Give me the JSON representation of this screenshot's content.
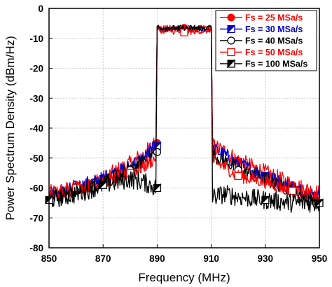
{
  "chart_data": {
    "type": "line",
    "xlabel": "Frequency (MHz)",
    "ylabel": "Power Spectrum Density (dBm/Hz)",
    "xlim": [
      850,
      950
    ],
    "ylim": [
      -80,
      0
    ],
    "xticks": [
      "850",
      "870",
      "890",
      "910",
      "930",
      "950"
    ],
    "yticks": [
      "0",
      "-10",
      "-20",
      "-30",
      "-40",
      "-50",
      "-60",
      "-70",
      "-80"
    ],
    "grid": true,
    "legend_position": "top-right",
    "series": [
      {
        "name": "Fs = 25 MSa/s",
        "color": "#ff0000",
        "marker": "filled-circle",
        "x": [
          850,
          860,
          870,
          880,
          885,
          889.5,
          890,
          891,
          900,
          909,
          910,
          910.5,
          915,
          920,
          930,
          940,
          950
        ],
        "y": [
          -62,
          -60,
          -57,
          -52,
          -49,
          -45,
          -6,
          -6.5,
          -6.5,
          -6.5,
          -6,
          -46,
          -48,
          -51,
          -55,
          -59,
          -62
        ],
        "marker_x": [
          860,
          890,
          900,
          920,
          940
        ],
        "marker_y": [
          -60,
          -45,
          -6.5,
          -51,
          -59
        ]
      },
      {
        "name": "Fs = 30 MSa/s",
        "color": "#0000cc",
        "marker": "half-filled-triangle",
        "x": [
          850,
          860,
          870,
          880,
          885,
          889.5,
          890,
          891,
          900,
          909,
          910,
          910.5,
          915,
          920,
          930,
          940,
          950
        ],
        "y": [
          -63,
          -60,
          -57,
          -53,
          -50,
          -46,
          -6.5,
          -7,
          -7,
          -7,
          -6.5,
          -47,
          -49,
          -52,
          -56,
          -60,
          -63
        ],
        "marker_x": [
          870,
          890,
          930
        ],
        "marker_y": [
          -57,
          -46,
          -56
        ]
      },
      {
        "name": "Fs = 40 MSa/s",
        "color": "#000000",
        "marker": "open-circle",
        "x": [
          850,
          860,
          870,
          880,
          885,
          889.5,
          890,
          891,
          900,
          909,
          910,
          910.5,
          915,
          920,
          930,
          940,
          950
        ],
        "y": [
          -63,
          -61,
          -58,
          -54,
          -51,
          -48,
          -6.5,
          -7,
          -7,
          -7,
          -6.5,
          -49,
          -51,
          -54,
          -57,
          -61,
          -64
        ],
        "marker_x": [
          880,
          890,
          920,
          940
        ],
        "marker_y": [
          -54,
          -48,
          -54,
          -61
        ]
      },
      {
        "name": "Fs = 50 MSa/s",
        "color": "#ff0000",
        "marker": "open-square",
        "x": [
          850,
          860,
          870,
          880,
          885,
          889.5,
          890,
          891,
          900,
          909,
          910,
          910.5,
          915,
          920,
          930,
          940,
          950
        ],
        "y": [
          -63,
          -60,
          -58,
          -55,
          -53,
          -50,
          -7,
          -7.5,
          -8,
          -7.5,
          -7,
          -51,
          -53,
          -56,
          -58,
          -61,
          -63
        ],
        "marker_x": [
          860,
          880,
          900,
          920,
          940
        ],
        "marker_y": [
          -60,
          -55,
          -8,
          -56,
          -61
        ]
      },
      {
        "name": "Fs = 100 MSa/s",
        "color": "#000000",
        "marker": "half-filled-triangle",
        "x": [
          850,
          860,
          870,
          880,
          885,
          889.5,
          890,
          891,
          900,
          909,
          910,
          910.5,
          915,
          920,
          930,
          940,
          950
        ],
        "y": [
          -64,
          -62,
          -59,
          -57,
          -58,
          -60,
          -6,
          -6.5,
          -6.5,
          -6.5,
          -6,
          -63,
          -62,
          -63,
          -64,
          -65,
          -65
        ],
        "marker_x": [
          850,
          870,
          890,
          930,
          950
        ],
        "marker_y": [
          -64,
          -59,
          -60,
          -64,
          -65
        ]
      }
    ]
  }
}
